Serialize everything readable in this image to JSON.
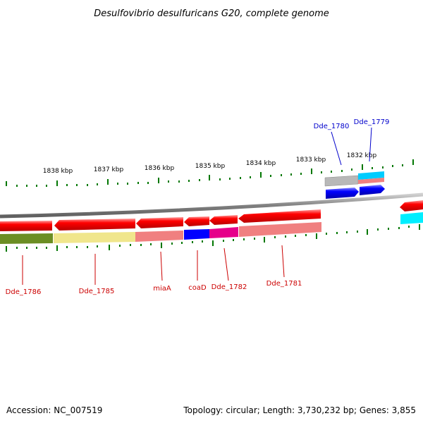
{
  "title": "Desulfovibrio desulfuricans G20, complete genome",
  "footer": {
    "accession": "Accession: NC_007519",
    "topology": "Topology: circular; Length: 3,730,232 bp; Genes: 3,855"
  },
  "scale_labels": [
    "1838 kbp",
    "1837 kbp",
    "1836 kbp",
    "1835 kbp",
    "1834 kbp",
    "1833 kbp",
    "1832 kbp"
  ],
  "gene_labels_bottom": [
    "Dde_1786",
    "Dde_1785",
    "miaA",
    "coaD",
    "Dde_1782",
    "Dde_1781"
  ],
  "gene_labels_top": [
    "Dde_1780",
    "Dde_1779"
  ],
  "colors": {
    "bottom_label": "#cc0000",
    "top_label": "#0000cc",
    "tick": "#007700",
    "backbone": "#808080",
    "cds_red": "#ff0000",
    "cds_blue": "#0000ff",
    "cds_cyan": "#00ccff",
    "olive": "#6b8e23",
    "khaki": "#f0e68c",
    "salmon": "#f08080",
    "magenta": "#e6008a",
    "gray": "#b0b0b0"
  }
}
